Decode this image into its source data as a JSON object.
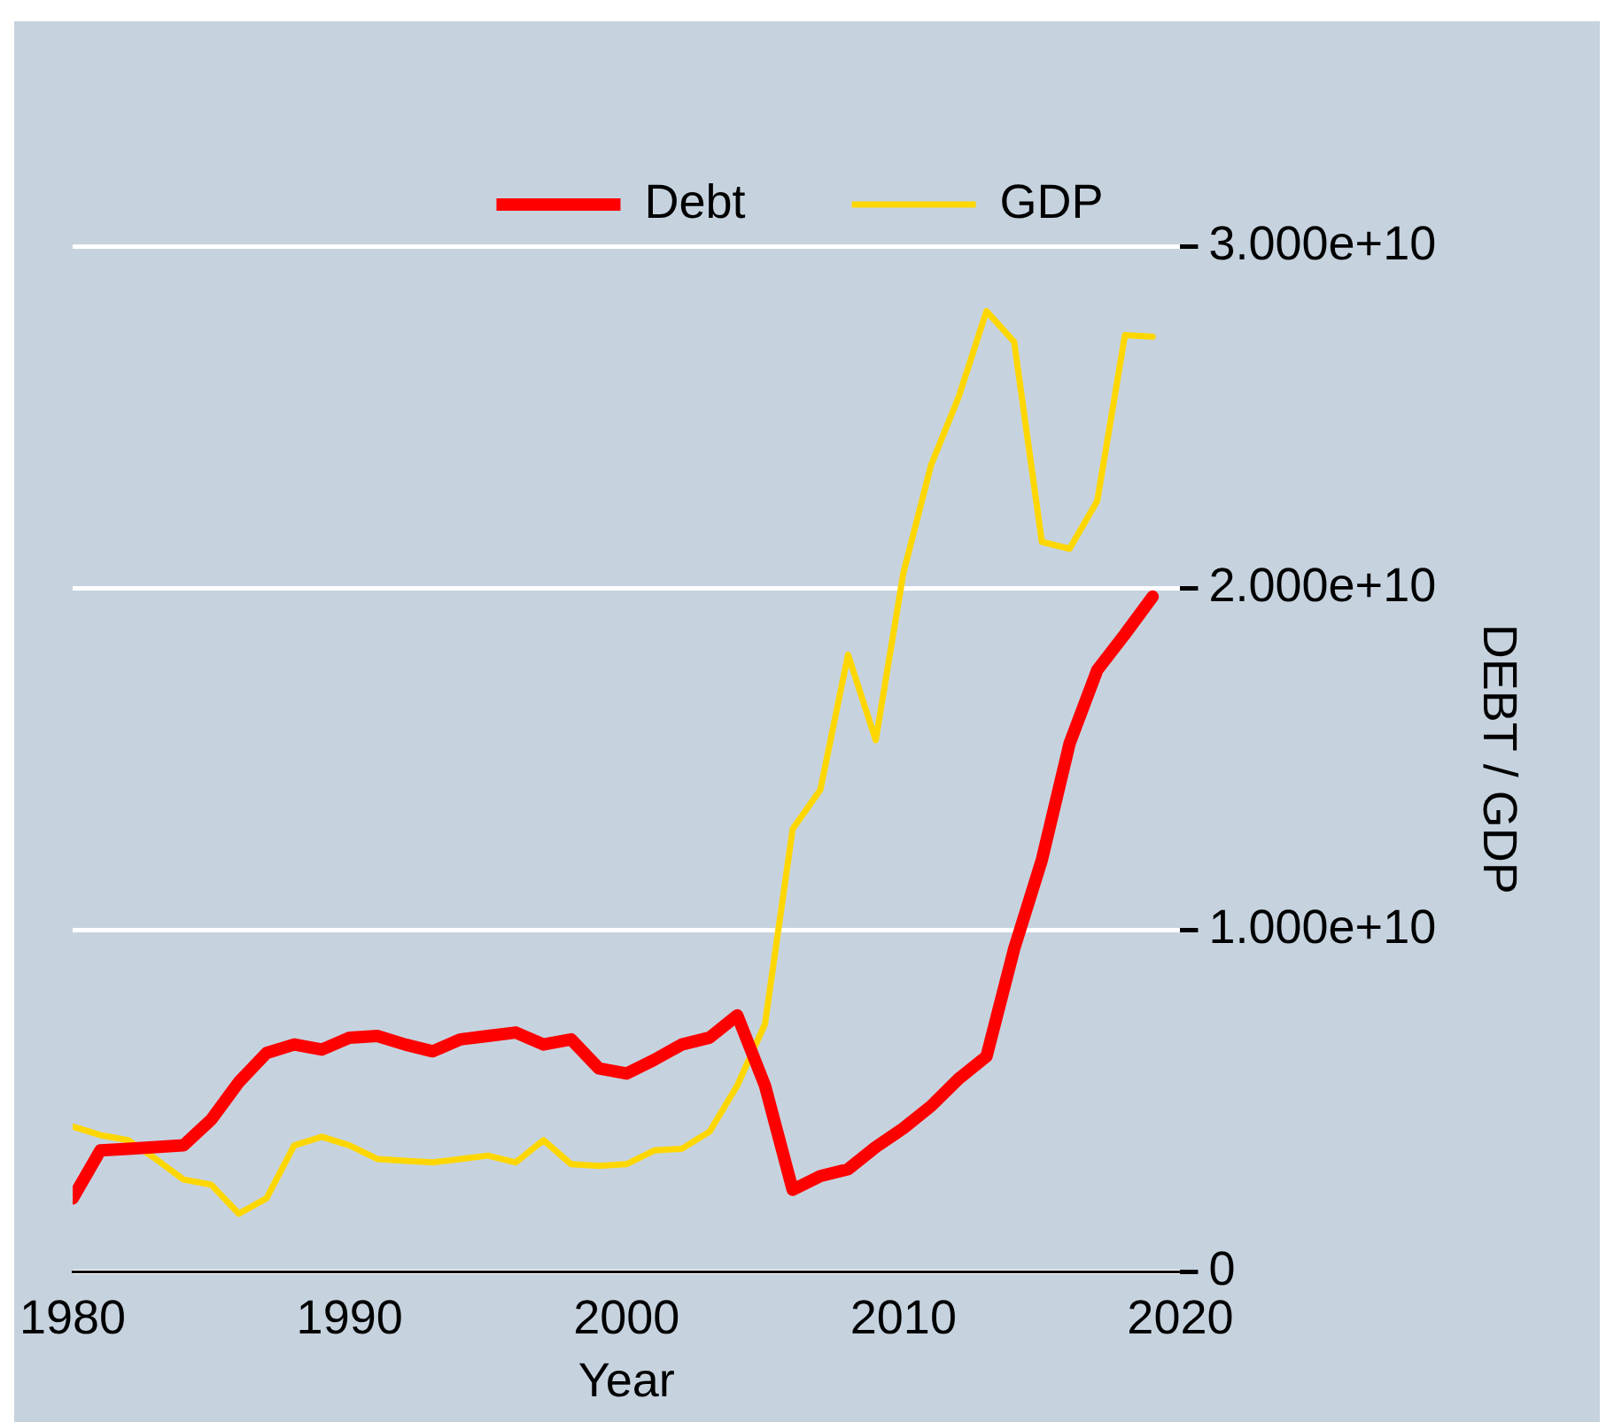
{
  "chart_data": {
    "type": "line",
    "xlabel": "Year",
    "ylabel": "DEBT / GDP",
    "x": [
      1980,
      1981,
      1982,
      1983,
      1984,
      1985,
      1986,
      1987,
      1988,
      1989,
      1990,
      1991,
      1992,
      1993,
      1994,
      1995,
      1996,
      1997,
      1998,
      1999,
      2000,
      2001,
      2002,
      2003,
      2004,
      2005,
      2006,
      2007,
      2008,
      2009,
      2010,
      2011,
      2012,
      2013,
      2014,
      2015,
      2016,
      2017,
      2018,
      2019
    ],
    "series": [
      {
        "name": "Debt",
        "color": "#ff0000",
        "values": [
          2150000000.0,
          3550000000.0,
          3600000000.0,
          3650000000.0,
          3700000000.0,
          4450000000.0,
          5550000000.0,
          6400000000.0,
          6650000000.0,
          6500000000.0,
          6850000000.0,
          6900000000.0,
          6650000000.0,
          6450000000.0,
          6800000000.0,
          6900000000.0,
          7000000000.0,
          6650000000.0,
          6800000000.0,
          5950000000.0,
          5800000000.0,
          6200000000.0,
          6650000000.0,
          6850000000.0,
          7500000000.0,
          5450000000.0,
          2400000000.0,
          2800000000.0,
          3000000000.0,
          3650000000.0,
          4200000000.0,
          4850000000.0,
          5650000000.0,
          6300000000.0,
          9450000000.0,
          12050000000.0,
          15450000000.0,
          17600000000.0,
          18650000000.0,
          19750000000.0
        ]
      },
      {
        "name": "GDP",
        "color": "#ffd700",
        "values": [
          4250000000.0,
          4000000000.0,
          3850000000.0,
          3300000000.0,
          2700000000.0,
          2550000000.0,
          1700000000.0,
          2150000000.0,
          3700000000.0,
          3950000000.0,
          3700000000.0,
          3300000000.0,
          3250000000.0,
          3200000000.0,
          3300000000.0,
          3400000000.0,
          3200000000.0,
          3850000000.0,
          3150000000.0,
          3100000000.0,
          3150000000.0,
          3550000000.0,
          3600000000.0,
          4100000000.0,
          5450000000.0,
          7250000000.0,
          12950000000.0,
          14100000000.0,
          18050000000.0,
          15550000000.0,
          20450000000.0,
          23600000000.0,
          25600000000.0,
          28100000000.0,
          27200000000.0,
          21350000000.0,
          21150000000.0,
          22550000000.0,
          27400000000.0,
          27350000000.0
        ]
      }
    ],
    "xlim": [
      1980,
      2020
    ],
    "xticks": [
      1980,
      1990,
      2000,
      2010,
      2020
    ],
    "ylim": [
      0,
      30000000000.0
    ],
    "yticks": [
      0,
      {
        "value": 10000000000.0,
        "label": "1.000e+10"
      },
      {
        "value": 20000000000.0,
        "label": "2.000e+10"
      },
      {
        "value": 30000000000.0,
        "label": "3.000e+10"
      }
    ],
    "grid": "y",
    "legend": "top"
  }
}
